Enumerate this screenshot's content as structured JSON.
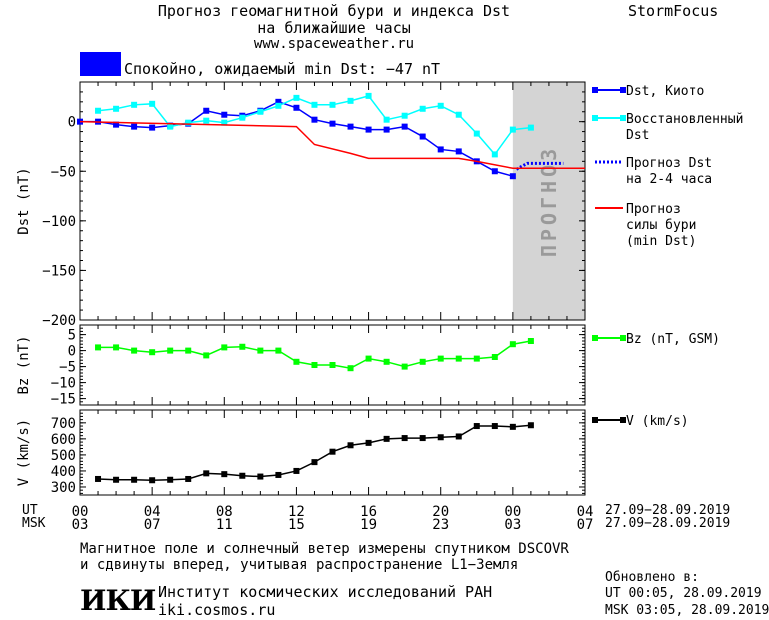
{
  "header": {
    "title_line1": "Прогноз геомагнитной бури и индекса Dst",
    "title_line2": "на ближайшие часы",
    "website": "www.spaceweather.ru",
    "brand": "StormFocus"
  },
  "status": {
    "text": "Спокойно, ожидаемый min Dst: −47 nT",
    "color": "#0000ff"
  },
  "chart_data": [
    {
      "type": "line",
      "panel": "dst",
      "ylabel": "Dst (nT)",
      "ylim": [
        -200,
        40
      ],
      "yticks": [
        0,
        -50,
        -100,
        -150,
        -200
      ],
      "ytick_labels": [
        "0",
        "−50",
        "−100",
        "−150",
        "−200"
      ],
      "xlim": [
        0,
        28
      ],
      "forecast_label": "ПРОГНОЗ",
      "forecast_region": [
        24,
        28
      ],
      "legend_placement": "right",
      "series": [
        {
          "name": "Dst, Киото",
          "color": "#0000ff",
          "marker": "square",
          "x": [
            0,
            1,
            2,
            3,
            4,
            5,
            6,
            7,
            8,
            9,
            10,
            11,
            12,
            13,
            14,
            15,
            16,
            17,
            18,
            19,
            20,
            21,
            22,
            23,
            24
          ],
          "y": [
            0,
            0,
            -3,
            -5,
            -6,
            -4,
            -2,
            11,
            7,
            6,
            11,
            20,
            14,
            2,
            -2,
            -5,
            -8,
            -8,
            -5,
            -15,
            -28,
            -30,
            -40,
            -50,
            -55
          ]
        },
        {
          "name": "Восстановленный Dst",
          "color": "#00ffff",
          "marker": "square",
          "x": [
            1,
            2,
            3,
            4,
            5,
            6,
            7,
            8,
            9,
            10,
            11,
            12,
            13,
            14,
            15,
            16,
            17,
            18,
            19,
            20,
            21,
            22,
            23,
            24,
            25
          ],
          "y": [
            11,
            13,
            17,
            18,
            -5,
            -1,
            1,
            -1,
            4,
            10,
            16,
            24,
            17,
            17,
            21,
            26,
            2,
            6,
            13,
            16,
            7,
            -12,
            -33,
            -8,
            -6
          ]
        },
        {
          "name": "Прогноз Dst на 2-4 часа",
          "color": "#0000ff",
          "style": "dotted",
          "x": [
            24.2,
            24.8,
            26.8
          ],
          "y": [
            -48,
            -42,
            -42
          ]
        },
        {
          "name": "Прогноз силы бури (min Dst)",
          "color": "#ff0000",
          "x": [
            0,
            12,
            13,
            15,
            16,
            21,
            22,
            24,
            28
          ],
          "y": [
            0,
            -5,
            -23,
            -32,
            -37,
            -37,
            -40,
            -47,
            -47
          ]
        }
      ]
    },
    {
      "type": "line",
      "panel": "bz",
      "ylabel": "Bz (nT)",
      "ylim": [
        -17,
        8
      ],
      "yticks": [
        5,
        0,
        -5,
        -10,
        -15
      ],
      "ytick_labels": [
        "5",
        "0",
        "−5",
        "−10",
        "−15"
      ],
      "xlim": [
        0,
        28
      ],
      "series": [
        {
          "name": "Bz (nT, GSM)",
          "color": "#00ff00",
          "marker": "square",
          "x": [
            1,
            2,
            3,
            4,
            5,
            6,
            7,
            8,
            9,
            10,
            11,
            12,
            13,
            14,
            15,
            16,
            17,
            18,
            19,
            20,
            21,
            22,
            23,
            24,
            25
          ],
          "y": [
            1,
            1,
            0,
            -0.5,
            0,
            0,
            -1.5,
            1,
            1.2,
            0,
            0,
            -3.5,
            -4.5,
            -4.5,
            -5.5,
            -2.5,
            -3.5,
            -5,
            -3.5,
            -2.5,
            -2.5,
            -2.5,
            -2,
            2,
            3
          ]
        }
      ]
    },
    {
      "type": "line",
      "panel": "v",
      "ylabel": "V (km/s)",
      "ylim": [
        250,
        780
      ],
      "yticks": [
        700,
        600,
        500,
        400,
        300
      ],
      "ytick_labels": [
        "700",
        "600",
        "500",
        "400",
        "300"
      ],
      "xlim": [
        0,
        28
      ],
      "series": [
        {
          "name": "V (km/s)",
          "color": "#000000",
          "marker": "square",
          "x": [
            1,
            2,
            3,
            4,
            5,
            6,
            7,
            8,
            9,
            10,
            11,
            12,
            13,
            14,
            15,
            16,
            17,
            18,
            19,
            20,
            21,
            22,
            23,
            24,
            25
          ],
          "y": [
            350,
            345,
            345,
            342,
            345,
            350,
            385,
            380,
            370,
            365,
            375,
            400,
            455,
            520,
            560,
            575,
            600,
            605,
            605,
            610,
            615,
            680,
            680,
            675,
            685
          ]
        }
      ]
    }
  ],
  "time_axis": {
    "ticks": [
      0,
      4,
      8,
      12,
      16,
      20,
      24,
      28
    ],
    "ut_label": "UT",
    "msk_label": "MSK",
    "ut_labels": [
      "00",
      "04",
      "08",
      "12",
      "16",
      "20",
      "00",
      "04"
    ],
    "msk_labels": [
      "03",
      "07",
      "11",
      "15",
      "19",
      "23",
      "03",
      "07"
    ],
    "date_range": "27.09−28.09.2019"
  },
  "footer": {
    "note_line1": "Магнитное поле и солнечный ветер измерены спутником DSCOVR",
    "note_line2": "и сдвинуты вперед, учитывая распространение L1−Земля",
    "logo_text": "ИКИ",
    "institute": "Институт космических исследований РАН",
    "institute_url": "iki.cosmos.ru",
    "updated_label": "Обновлено в:",
    "updated_ut": "UT  00:05, 28.09.2019",
    "updated_msk": "MSK 03:05, 28.09.2019"
  }
}
